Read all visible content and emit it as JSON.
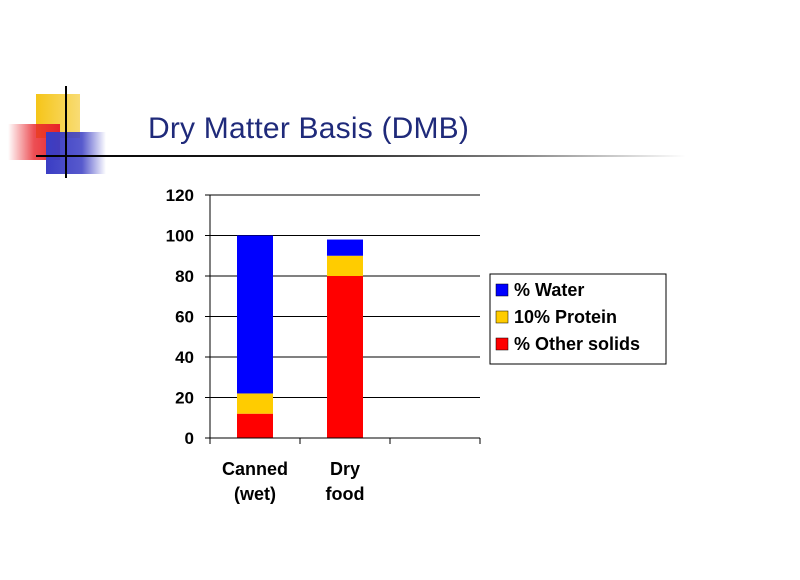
{
  "slide": {
    "title": "Dry Matter Basis (DMB)",
    "colors": {
      "title": "#1f2a7a",
      "deco_yellow": "#f5c518",
      "deco_red": "#e8232a",
      "deco_blue": "#3a3dc4"
    }
  },
  "chart_data": {
    "type": "bar",
    "stacked": true,
    "categories": [
      [
        "Canned",
        "(wet)"
      ],
      [
        "Dry",
        "food"
      ],
      [
        "",
        ""
      ]
    ],
    "category_labels": [
      "Canned (wet)",
      "Dry food",
      ""
    ],
    "series": [
      {
        "name": "% Other solids",
        "color": "#ff0000",
        "values": [
          12,
          80,
          null
        ]
      },
      {
        "name": "10% Protein",
        "color": "#ffcc00",
        "values": [
          10,
          10,
          null
        ]
      },
      {
        "name": "% Water",
        "color": "#0000ff",
        "values": [
          78,
          8,
          null
        ]
      }
    ],
    "legend_order": [
      2,
      1,
      0
    ],
    "legend_position": "right",
    "ylim": [
      0,
      120
    ],
    "yticks": [
      0,
      20,
      40,
      60,
      80,
      100,
      120
    ],
    "grid": true,
    "title": "",
    "xlabel": "",
    "ylabel": ""
  }
}
